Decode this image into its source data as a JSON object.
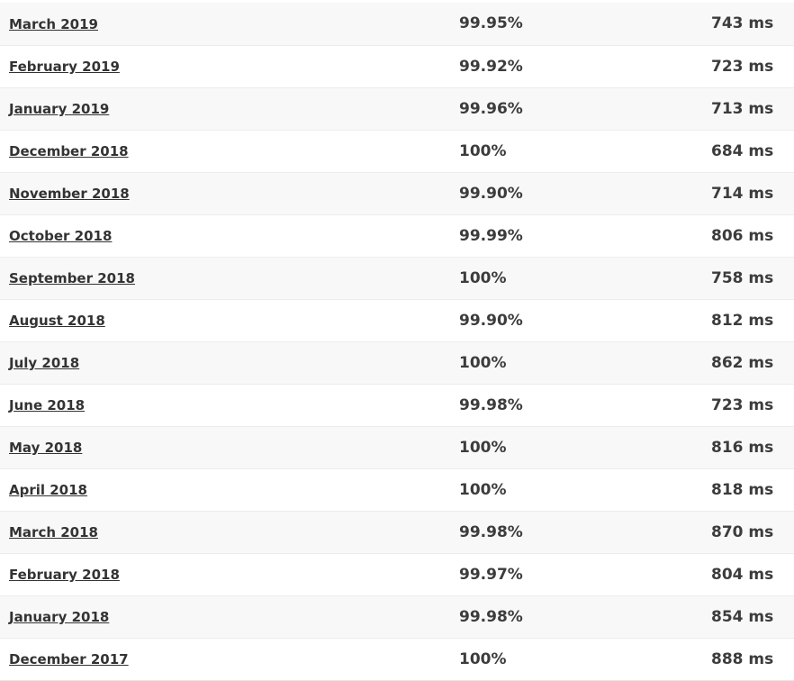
{
  "rows": [
    {
      "month": "March 2019",
      "uptime": "99.95%",
      "response": "743 ms"
    },
    {
      "month": "February 2019",
      "uptime": "99.92%",
      "response": "723 ms"
    },
    {
      "month": "January 2019",
      "uptime": "99.96%",
      "response": "713 ms"
    },
    {
      "month": "December 2018",
      "uptime": "100%",
      "response": "684 ms"
    },
    {
      "month": "November 2018",
      "uptime": "99.90%",
      "response": "714 ms"
    },
    {
      "month": "October 2018",
      "uptime": "99.99%",
      "response": "806 ms"
    },
    {
      "month": "September 2018",
      "uptime": "100%",
      "response": "758 ms"
    },
    {
      "month": "August 2018",
      "uptime": "99.90%",
      "response": "812 ms"
    },
    {
      "month": "July 2018",
      "uptime": "100%",
      "response": "862 ms"
    },
    {
      "month": "June 2018",
      "uptime": "99.98%",
      "response": "723 ms"
    },
    {
      "month": "May 2018",
      "uptime": "100%",
      "response": "816 ms"
    },
    {
      "month": "April 2018",
      "uptime": "100%",
      "response": "818 ms"
    },
    {
      "month": "March 2018",
      "uptime": "99.98%",
      "response": "870 ms"
    },
    {
      "month": "February 2018",
      "uptime": "99.97%",
      "response": "804 ms"
    },
    {
      "month": "January 2018",
      "uptime": "99.98%",
      "response": "854 ms"
    },
    {
      "month": "December 2017",
      "uptime": "100%",
      "response": "888 ms"
    }
  ]
}
